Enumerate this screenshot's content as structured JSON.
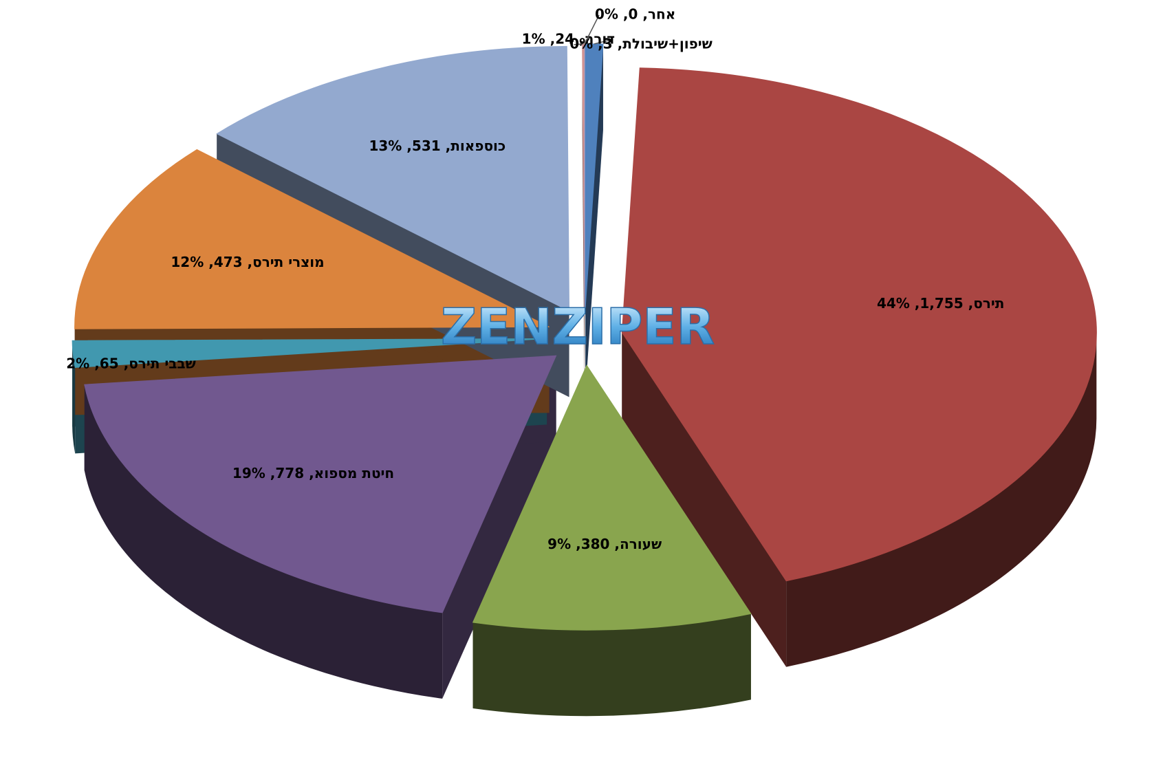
{
  "chart_data": {
    "type": "pie",
    "watermark": "ZENZIPER",
    "categories": [
      "דורה",
      "תירס",
      "שעורה",
      "חיטת מספוא",
      "שבבי תירס",
      "מוצרי תירס",
      "כוספאות",
      "שיפון+שיבולת",
      "אחר"
    ],
    "values": [
      24,
      1755,
      380,
      778,
      65,
      473,
      531,
      3,
      0
    ],
    "value_labels": [
      "דורה, 24, 1%",
      "תירס, 1,755, 44%",
      "שעורה, 380, 9%",
      "חיטת מספוא, 778, 19%",
      "שבבי תירס, 65, 2%",
      "מוצרי תירס, 473, 12%",
      "כוספאות, 531, 13%",
      "שיפון+שיבולת, 3, 0%",
      "אחר, 0, 0%"
    ],
    "colors": [
      "#4f81bd",
      "#aa4643",
      "#89a54e",
      "#71588f",
      "#4198af",
      "#db843d",
      "#93a9cf",
      "#d19392",
      "#a99bbd"
    ],
    "start_angle": -90,
    "exploded": true
  }
}
